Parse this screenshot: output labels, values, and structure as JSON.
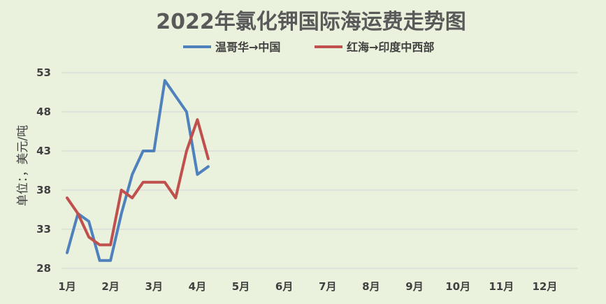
{
  "chart_data": {
    "type": "line",
    "title": "2022年氯化钾国际海运费走势图",
    "ylabel": "单位：，美元/吨",
    "xlabel": "",
    "ylim": [
      28,
      53
    ],
    "yticks": [
      28,
      33,
      38,
      43,
      48,
      53
    ],
    "xlim": [
      1,
      12.75
    ],
    "categories": [
      "1月",
      "2月",
      "3月",
      "4月",
      "5月",
      "6月",
      "7月",
      "8月",
      "9月",
      "10月",
      "11月",
      "12月"
    ],
    "grid": true,
    "legend_position": "top",
    "series": [
      {
        "name": "温哥华→中国",
        "color": "#4f81bd",
        "x": [
          1.0,
          1.25,
          1.5,
          1.75,
          2.0,
          2.25,
          2.5,
          2.75,
          3.0,
          3.25,
          3.5,
          3.75,
          4.0,
          4.25
        ],
        "values": [
          30,
          35,
          34,
          29,
          29,
          35,
          40,
          43,
          43,
          52,
          50,
          48,
          40,
          41
        ]
      },
      {
        "name": "红海→印度中西部",
        "color": "#c0504d",
        "x": [
          1.0,
          1.25,
          1.5,
          1.75,
          2.0,
          2.25,
          2.5,
          2.75,
          3.0,
          3.25,
          3.5,
          3.75,
          4.0,
          4.25
        ],
        "values": [
          37,
          35,
          32,
          31,
          31,
          38,
          37,
          39,
          39,
          39,
          37,
          43,
          47,
          42
        ]
      }
    ]
  }
}
